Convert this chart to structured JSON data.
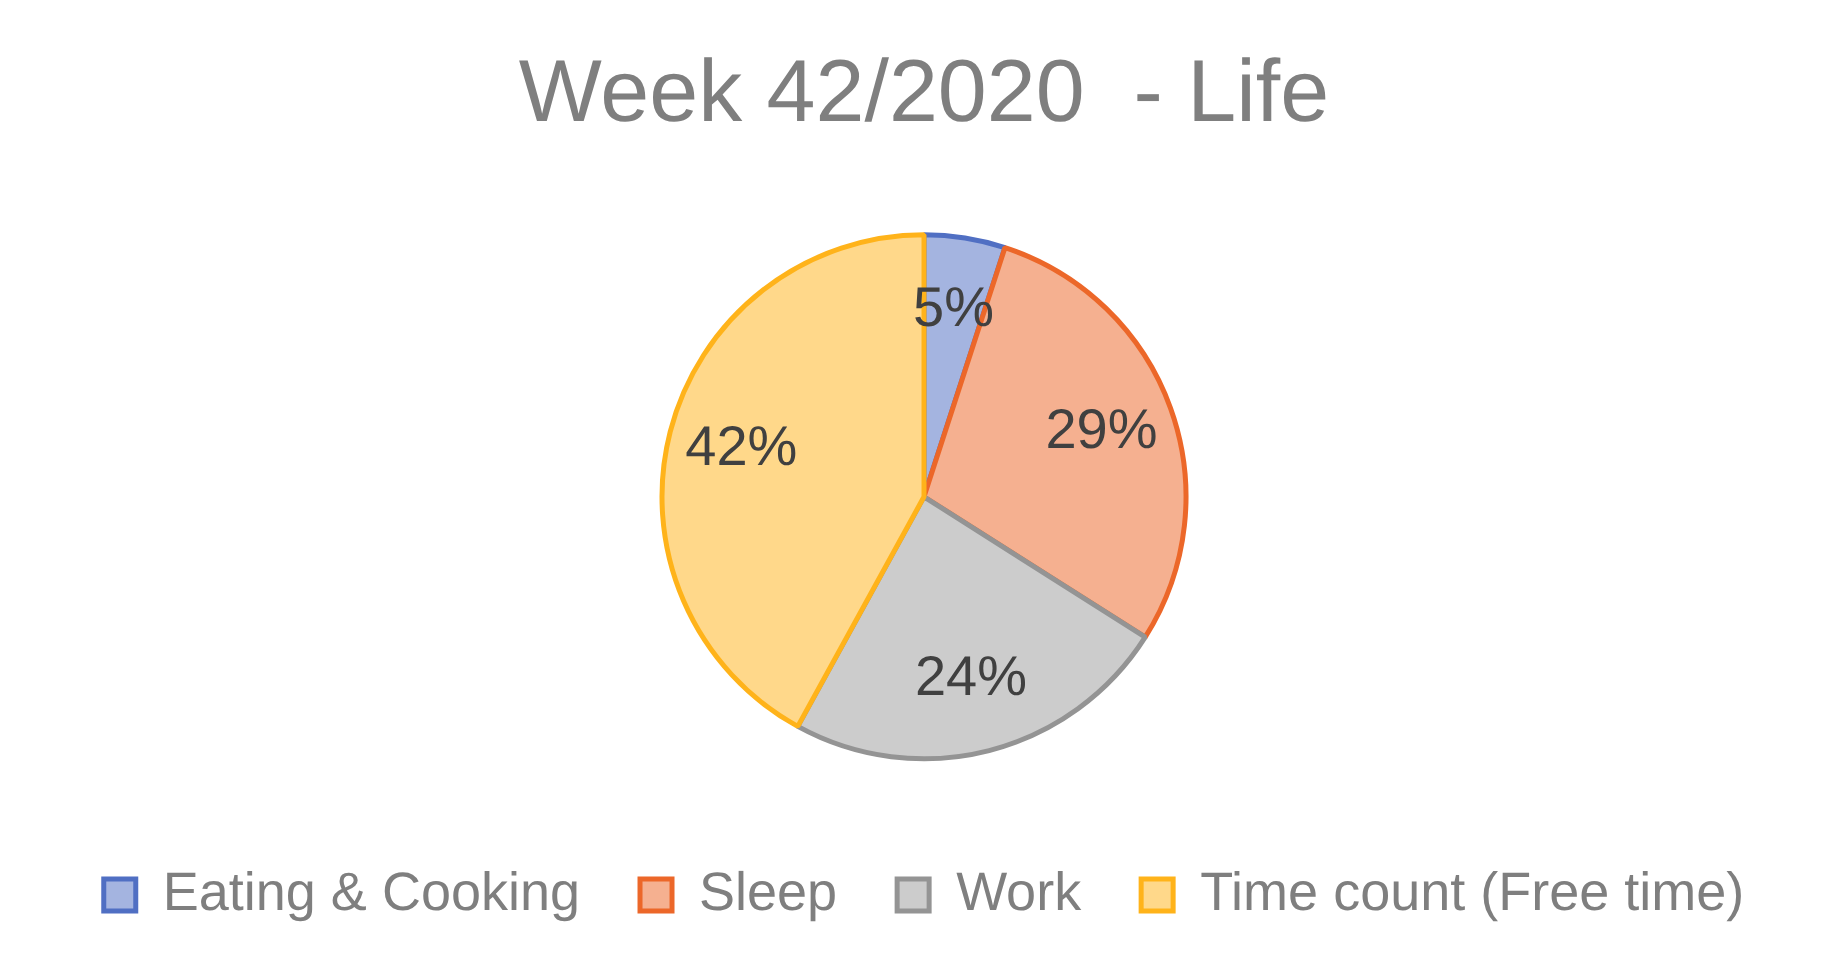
{
  "chart_data": {
    "type": "pie",
    "title": "Week 42/2020  - Life",
    "categories": [
      "Eating & Cooking",
      "Sleep",
      "Work",
      "Time count (Free time)"
    ],
    "values": [
      5,
      29,
      24,
      42
    ],
    "colors": [
      "#a4b4e0",
      "#f5b090",
      "#cccccc",
      "#ffd88a"
    ],
    "value_labels": [
      "5%",
      "29%",
      "24%",
      "42%"
    ],
    "legend": "bottom"
  }
}
